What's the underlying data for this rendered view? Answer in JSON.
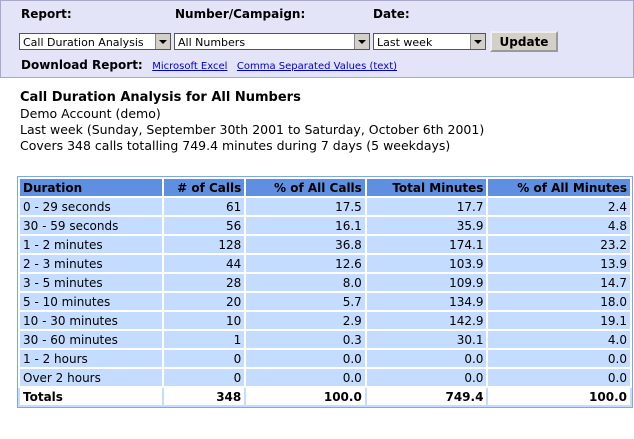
{
  "form": {
    "report_label": "Report:",
    "report_value": "Call Duration Analysis",
    "number_label": "Number/Campaign:",
    "number_value": "All Numbers",
    "date_label": "Date:",
    "date_value": "Last week",
    "button": "Update"
  },
  "download": {
    "label": "Download Report:",
    "links": [
      "Microsoft Excel",
      "Comma Separated Values (text)"
    ]
  },
  "summary": {
    "title": "Call Duration Analysis for All Numbers",
    "lines": [
      "Demo Account (demo)",
      "Last week (Sunday, September 30th 2001 to Saturday, October 6th 2001)",
      "Covers 348 calls totalling 749.4 minutes during 7 days (5 weekdays)"
    ]
  },
  "table": {
    "columns": [
      "Duration",
      "# of Calls",
      "% of All Calls",
      "Total Minutes",
      "% of All Minutes"
    ],
    "rows": [
      [
        "0 - 29 seconds",
        "61",
        "17.5",
        "17.7",
        "2.4"
      ],
      [
        "30 - 59 seconds",
        "56",
        "16.1",
        "35.9",
        "4.8"
      ],
      [
        "1 - 2 minutes",
        "128",
        "36.8",
        "174.1",
        "23.2"
      ],
      [
        "2 - 3 minutes",
        "44",
        "12.6",
        "103.9",
        "13.9"
      ],
      [
        "3 - 5 minutes",
        "28",
        "8.0",
        "109.9",
        "14.7"
      ],
      [
        "5 - 10 minutes",
        "20",
        "5.7",
        "134.9",
        "18.0"
      ],
      [
        "10 - 30 minutes",
        "10",
        "2.9",
        "142.9",
        "19.1"
      ],
      [
        "30 - 60 minutes",
        "1",
        "0.3",
        "30.1",
        "4.0"
      ],
      [
        "1 - 2 hours",
        "0",
        "0.0",
        "0.0",
        "0.0"
      ],
      [
        "Over 2 hours",
        "0",
        "0.0",
        "0.0",
        "0.0"
      ]
    ],
    "totals": [
      "Totals",
      "348",
      "100.0",
      "749.4",
      "100.0"
    ]
  }
}
